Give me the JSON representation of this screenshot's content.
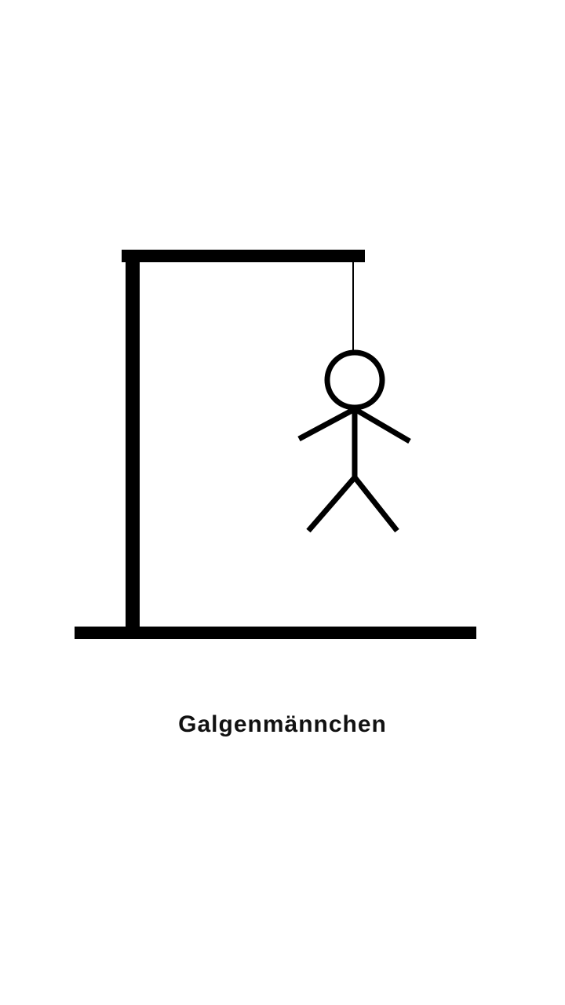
{
  "app": {
    "title": "Galgenmännchen"
  },
  "icons": {
    "gallows": "gallows-icon",
    "figure": "hangman-figure-icon"
  },
  "colors": {
    "background": "#ffffff",
    "ink": "#000000",
    "text": "#111111"
  }
}
